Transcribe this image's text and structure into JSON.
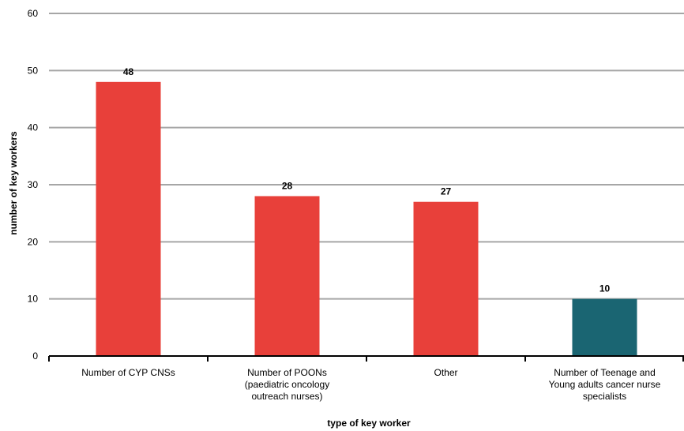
{
  "chart_data": {
    "type": "bar",
    "categories": [
      [
        "Number of CYP CNSs"
      ],
      [
        "Number of POONs",
        "(paediatric oncology",
        "outreach nurses)"
      ],
      [
        "Other"
      ],
      [
        "Number of Teenage and",
        "Young adults cancer nurse",
        "specialists"
      ]
    ],
    "values": [
      48,
      28,
      27,
      10
    ],
    "data_labels": [
      "48",
      "28",
      "27",
      "10"
    ],
    "bar_colors": [
      "#e8403a",
      "#e8403a",
      "#e8403a",
      "#1a6572"
    ],
    "title": "",
    "xlabel": "type of key worker",
    "ylabel": "number of key workers",
    "ylim": [
      0,
      60
    ],
    "yticks": [
      0,
      10,
      20,
      30,
      40,
      50,
      60
    ],
    "grid": true,
    "legend": "none"
  },
  "colors": {
    "grid": "#a6a6a6",
    "axis": "#000000"
  }
}
